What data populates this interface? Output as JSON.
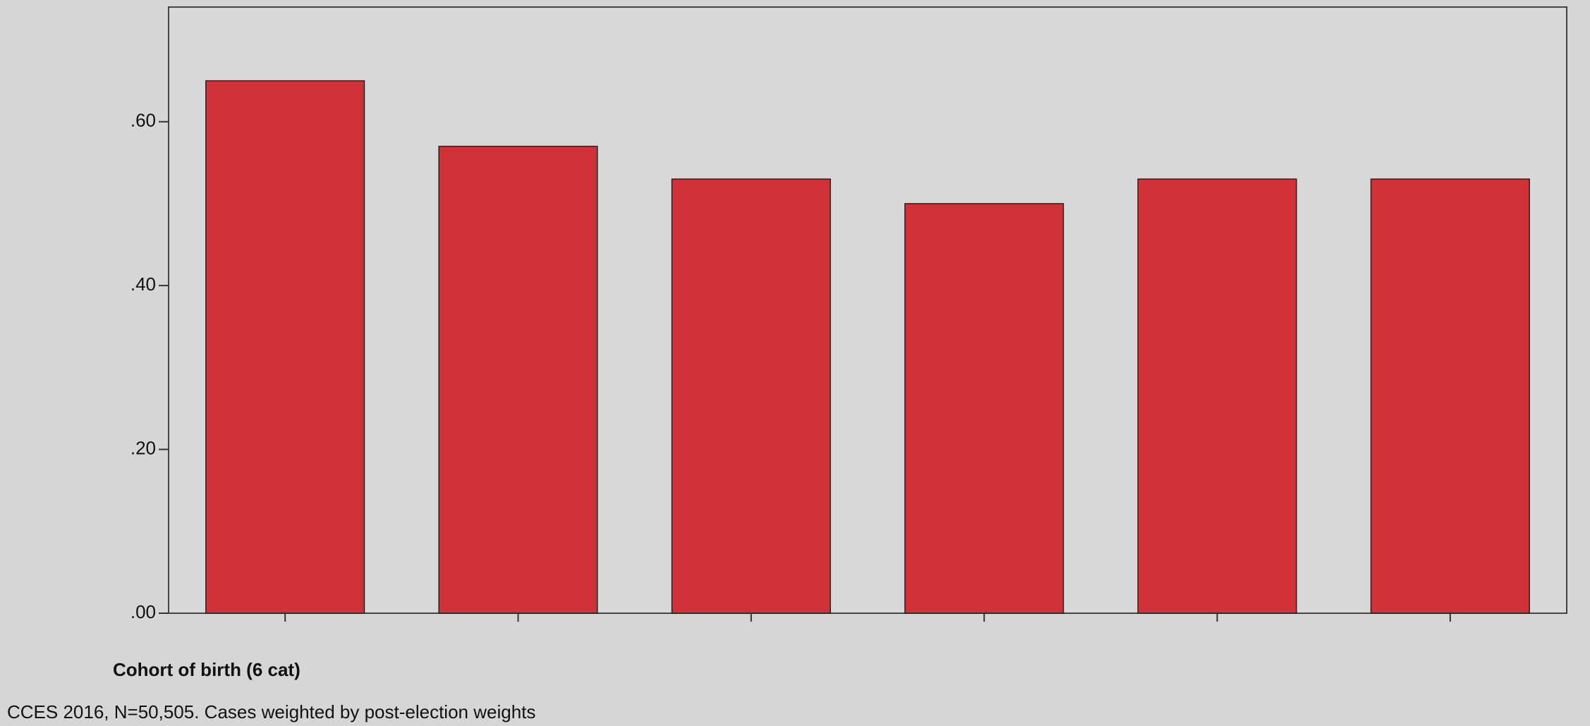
{
  "chart_data": {
    "type": "bar",
    "x_label": "Cohort of birth (6 cat)",
    "footnote": "CCES 2016, N=50,505. Cases weighted by post-election weights",
    "categories": [
      null,
      null,
      null,
      null,
      null,
      null
    ],
    "values": [
      0.65,
      0.57,
      0.53,
      0.5,
      0.53,
      0.53
    ],
    "color": "#d03238",
    "ylim": [
      0,
      0.74
    ],
    "yticks": [
      {
        "value": 0,
        "label": ".00"
      },
      {
        "value": 0.2,
        "label": ".20"
      },
      {
        "value": 0.4,
        "label": ".40"
      },
      {
        "value": 0.6,
        "label": ".60"
      }
    ]
  }
}
